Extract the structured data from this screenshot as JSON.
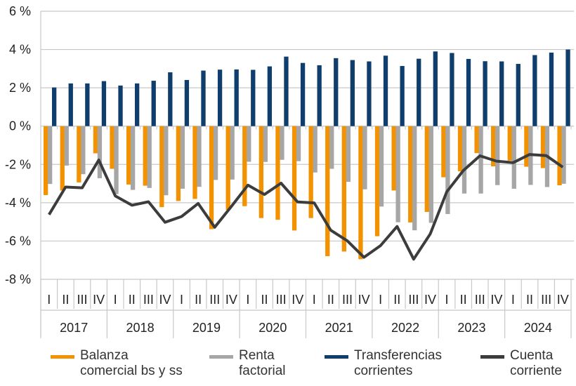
{
  "chart_data": {
    "type": "bar",
    "ylim": [
      -8,
      6
    ],
    "yticks": [
      6,
      4,
      2,
      0,
      -2,
      -4,
      -6,
      -8
    ],
    "ytick_labels": [
      "6 %",
      "4 %",
      "2 %",
      "0 %",
      "-2 %",
      "-4 %",
      "-6 %",
      "-8 %"
    ],
    "grid": true,
    "legend_position": "bottom",
    "quarters": [
      "I",
      "II",
      "III",
      "IV"
    ],
    "years": [
      "2017",
      "2018",
      "2019",
      "2020",
      "2021",
      "2022",
      "2023",
      "2024"
    ],
    "series": [
      {
        "name": "Balanza comercial bs y ss",
        "type": "bar",
        "color": "#F39200",
        "values": [
          -3.6,
          -3.36,
          -2.94,
          -1.42,
          -2.23,
          -3.05,
          -3.11,
          -4.23,
          -3.91,
          -3.8,
          -5.38,
          -4.38,
          -4.18,
          -4.8,
          -4.89,
          -5.45,
          -4.8,
          -6.79,
          -6.55,
          -6.95,
          -5.75,
          -3.36,
          -5.03,
          -4.48,
          -2.67,
          -2.36,
          -1.41,
          -2.1,
          -1.8,
          -2.12,
          -2.19,
          -3.09
        ]
      },
      {
        "name": "Renta factorial",
        "type": "bar",
        "color": "#A6A6A6",
        "values": [
          -3.02,
          -2.06,
          -2.51,
          -2.72,
          -3.55,
          -3.33,
          -3.23,
          -3.61,
          -3.27,
          -3.17,
          -2.81,
          -2.79,
          -1.86,
          -1.87,
          -1.76,
          -1.83,
          -2.42,
          -2.23,
          -2.91,
          -3.3,
          -4.2,
          -5.02,
          -5.44,
          -5.05,
          -4.59,
          -3.52,
          -3.52,
          -3.08,
          -3.27,
          -3.07,
          -3.18,
          -3.01
        ]
      },
      {
        "name": "Transferencias corrientes",
        "type": "bar",
        "color": "#0F3E6C",
        "values": [
          2.02,
          2.23,
          2.23,
          2.35,
          2.12,
          2.23,
          2.37,
          2.81,
          2.41,
          2.9,
          2.95,
          2.96,
          2.94,
          3.12,
          3.63,
          3.3,
          3.18,
          3.55,
          3.45,
          3.38,
          3.68,
          3.14,
          3.52,
          3.9,
          3.82,
          3.51,
          3.39,
          3.38,
          3.25,
          3.71,
          3.84,
          4.0
        ]
      },
      {
        "name": "Cuenta corriente",
        "type": "line",
        "color": "#3C3C3C",
        "values": [
          -4.62,
          -3.18,
          -3.22,
          -1.77,
          -3.65,
          -4.13,
          -3.95,
          -5.02,
          -4.72,
          -4.04,
          -5.28,
          -4.2,
          -3.08,
          -3.57,
          -2.98,
          -3.96,
          -4.01,
          -5.44,
          -5.99,
          -6.85,
          -6.24,
          -5.24,
          -6.95,
          -5.63,
          -3.43,
          -2.32,
          -1.55,
          -1.83,
          -1.91,
          -1.48,
          -1.54,
          -2.14
        ]
      }
    ]
  },
  "legend": [
    {
      "label_line1": "Balanza",
      "label_line2": "comercial bs y ss"
    },
    {
      "label_line1": "Renta",
      "label_line2": "factorial"
    },
    {
      "label_line1": "Transferencias",
      "label_line2": "corrientes"
    },
    {
      "label_line1": "Cuenta",
      "label_line2": "corriente"
    }
  ]
}
